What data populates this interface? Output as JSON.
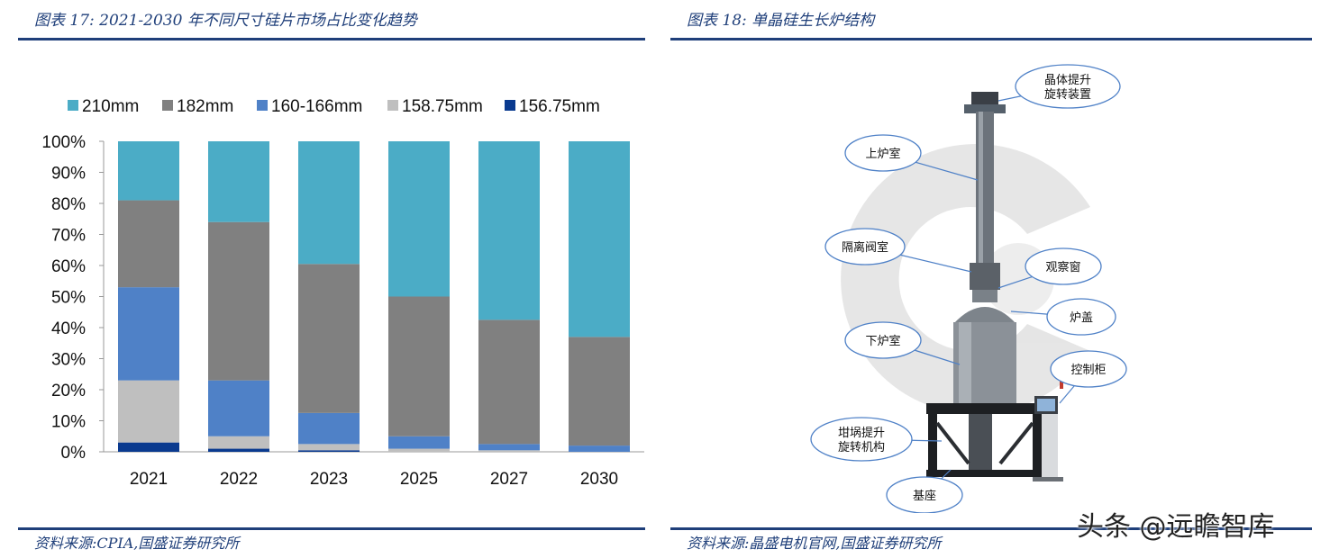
{
  "left_panel": {
    "title": "图表 17:  2021-2030 年不同尺寸硅片市场占比变化趋势",
    "source": "资料来源:CPIA,国盛证券研究所"
  },
  "right_panel": {
    "title": "图表 18:  单晶硅生长炉结构",
    "source": "资料来源:晶盛电机官网,国盛证券研究所",
    "callouts": [
      {
        "id": "seed-lift",
        "lines": [
          "晶体提升",
          "旋转装置"
        ]
      },
      {
        "id": "upper-chamber",
        "lines": [
          "上炉室"
        ]
      },
      {
        "id": "isolation-valve",
        "lines": [
          "隔离阀室"
        ]
      },
      {
        "id": "view-window",
        "lines": [
          "观察窗"
        ]
      },
      {
        "id": "furnace-lid",
        "lines": [
          "炉盖"
        ]
      },
      {
        "id": "lower-chamber",
        "lines": [
          "下炉室"
        ]
      },
      {
        "id": "control-cabinet",
        "lines": [
          "控制柜"
        ]
      },
      {
        "id": "crucible-lift",
        "lines": [
          "坩埚提升",
          "旋转机构"
        ]
      },
      {
        "id": "base",
        "lines": [
          "基座"
        ]
      }
    ]
  },
  "watermark": "头条 @远瞻智库",
  "chart_data": {
    "type": "bar",
    "stacked": true,
    "categories": [
      "2021",
      "2022",
      "2023",
      "2025",
      "2027",
      "2030"
    ],
    "ylim": [
      0,
      100
    ],
    "yticks": [
      "0%",
      "10%",
      "20%",
      "30%",
      "40%",
      "50%",
      "60%",
      "70%",
      "80%",
      "90%",
      "100%"
    ],
    "legend_position": "top",
    "grid": false,
    "series": [
      {
        "name": "156.75mm",
        "color": "#0a3a8f",
        "values": [
          3,
          1,
          0.5,
          0,
          0,
          0
        ]
      },
      {
        "name": "158.75mm",
        "color": "#bfbfbf",
        "values": [
          20,
          4,
          2,
          1,
          0.5,
          0
        ]
      },
      {
        "name": "160-166mm",
        "color": "#4f81c7",
        "values": [
          30,
          18,
          10,
          4,
          2,
          2
        ]
      },
      {
        "name": "182mm",
        "color": "#808080",
        "values": [
          28,
          51,
          48,
          45,
          40,
          35
        ]
      },
      {
        "name": "210mm",
        "color": "#4bacc6",
        "values": [
          19,
          26,
          39.5,
          50,
          57.5,
          63
        ]
      }
    ],
    "legend_order": [
      "210mm",
      "182mm",
      "160-166mm",
      "158.75mm",
      "156.75mm"
    ]
  }
}
